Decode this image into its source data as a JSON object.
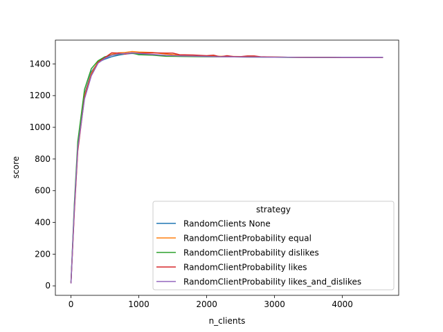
{
  "chart_data": {
    "type": "line",
    "xlabel": "n_clients",
    "ylabel": "score",
    "xlim": [
      -230,
      4830
    ],
    "ylim": [
      -60,
      1550
    ],
    "xticks": [
      0,
      1000,
      2000,
      3000,
      4000
    ],
    "yticks": [
      0,
      200,
      400,
      600,
      800,
      1000,
      1200,
      1400
    ],
    "grid": false,
    "legend": {
      "title": "strategy",
      "placement": "lower right"
    },
    "series": [
      {
        "name": "RandomClients None",
        "color": "#1f77b4",
        "x": [
          0,
          50,
          100,
          200,
          300,
          400,
          500,
          600,
          700,
          800,
          900,
          1000,
          1200,
          1400,
          1600,
          1800,
          2000,
          2200,
          2400,
          2600,
          2800,
          3000,
          3200,
          3400,
          3600,
          3800,
          4000,
          4200,
          4400,
          4600
        ],
        "y": [
          20,
          500,
          880,
          1210,
          1350,
          1410,
          1430,
          1445,
          1455,
          1462,
          1466,
          1462,
          1458,
          1452,
          1450,
          1448,
          1447,
          1446,
          1445,
          1444,
          1443,
          1443,
          1442,
          1442,
          1441,
          1441,
          1441,
          1441,
          1441,
          1441
        ]
      },
      {
        "name": "RandomClientProbability equal",
        "color": "#ff7f0e",
        "x": [
          0,
          50,
          100,
          200,
          300,
          400,
          500,
          600,
          700,
          800,
          900,
          1000,
          1200,
          1400,
          1600,
          1800,
          2000,
          2200,
          2400,
          2600,
          2800,
          3000,
          3200,
          3400,
          3600,
          3800,
          4000,
          4200,
          4400,
          4600
        ],
        "y": [
          18,
          480,
          860,
          1200,
          1340,
          1415,
          1440,
          1460,
          1470,
          1472,
          1478,
          1475,
          1472,
          1462,
          1455,
          1452,
          1450,
          1448,
          1447,
          1446,
          1444,
          1443,
          1442,
          1442,
          1441,
          1441,
          1440,
          1440,
          1440,
          1440
        ]
      },
      {
        "name": "RandomClientProbability dislikes",
        "color": "#2ca02c",
        "x": [
          0,
          50,
          100,
          200,
          300,
          400,
          500,
          600,
          700,
          800,
          900,
          1000,
          1200,
          1400,
          1600,
          1800,
          2000,
          2200,
          2400,
          2600,
          2800,
          3000,
          3200,
          3400,
          3600,
          3800,
          4000,
          4200,
          4400,
          4600
        ],
        "y": [
          22,
          520,
          910,
          1240,
          1370,
          1420,
          1445,
          1455,
          1460,
          1465,
          1468,
          1458,
          1455,
          1448,
          1447,
          1446,
          1445,
          1444,
          1444,
          1443,
          1443,
          1442,
          1441,
          1441,
          1441,
          1441,
          1440,
          1440,
          1440,
          1440
        ]
      },
      {
        "name": "RandomClientProbability likes",
        "color": "#d62728",
        "x": [
          0,
          50,
          100,
          200,
          300,
          400,
          500,
          600,
          700,
          800,
          900,
          1000,
          1200,
          1400,
          1500,
          1600,
          1800,
          2000,
          2100,
          2200,
          2300,
          2400,
          2500,
          2600,
          2700,
          2800,
          3000,
          3200,
          3400,
          3600,
          3800,
          4000,
          4200,
          4400,
          4600
        ],
        "y": [
          16,
          470,
          850,
          1190,
          1330,
          1410,
          1440,
          1470,
          1468,
          1462,
          1470,
          1468,
          1470,
          1468,
          1468,
          1458,
          1456,
          1452,
          1455,
          1445,
          1452,
          1446,
          1446,
          1450,
          1450,
          1445,
          1443,
          1442,
          1441,
          1441,
          1441,
          1440,
          1440,
          1440,
          1440
        ]
      },
      {
        "name": "RandomClientProbability likes_and_dislikes",
        "color": "#9467bd",
        "x": [
          0,
          50,
          100,
          200,
          300,
          400,
          500,
          600,
          700,
          800,
          900,
          1000,
          1200,
          1400,
          1600,
          1800,
          2000,
          2200,
          2400,
          2600,
          2800,
          3000,
          3200,
          3400,
          3600,
          3800,
          4000,
          4200,
          4400,
          4600
        ],
        "y": [
          15,
          490,
          870,
          1180,
          1325,
          1405,
          1435,
          1455,
          1462,
          1466,
          1470,
          1466,
          1460,
          1454,
          1451,
          1449,
          1447,
          1445,
          1444,
          1443,
          1443,
          1442,
          1442,
          1441,
          1441,
          1441,
          1441,
          1441,
          1441,
          1441
        ]
      }
    ]
  }
}
